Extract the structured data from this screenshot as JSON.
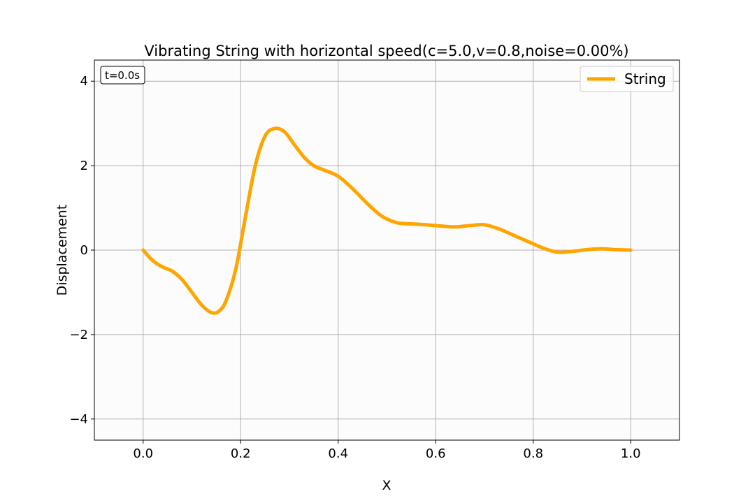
{
  "chart_data": {
    "type": "line",
    "title": "Vibrating String with horizontal speed(c=5.0,v=0.8,noise=0.00%)",
    "xlabel": "X",
    "ylabel": "Displacement",
    "xlim": [
      -0.1,
      1.1
    ],
    "ylim": [
      -4.5,
      4.5
    ],
    "xticks": [
      0.0,
      0.2,
      0.4,
      0.6,
      0.8,
      1.0
    ],
    "yticks": [
      -4,
      -2,
      0,
      2,
      4
    ],
    "xtick_labels": [
      "0.0",
      "0.2",
      "0.4",
      "0.6",
      "0.8",
      "1.0"
    ],
    "ytick_labels": [
      "−4",
      "−2",
      "0",
      "2",
      "4"
    ],
    "grid": true,
    "legend_position": "top-right",
    "annotation": "t=0.0s",
    "series": [
      {
        "name": "String",
        "color": "#FFA500",
        "x": [
          0.0,
          0.02,
          0.04,
          0.06,
          0.08,
          0.1,
          0.12,
          0.14,
          0.155,
          0.17,
          0.19,
          0.21,
          0.23,
          0.25,
          0.27,
          0.29,
          0.31,
          0.33,
          0.35,
          0.37,
          0.4,
          0.43,
          0.46,
          0.49,
          0.52,
          0.55,
          0.58,
          0.61,
          0.64,
          0.67,
          0.7,
          0.73,
          0.76,
          0.79,
          0.82,
          0.85,
          0.88,
          0.91,
          0.94,
          0.97,
          1.0
        ],
        "y": [
          0.0,
          -0.25,
          -0.4,
          -0.5,
          -0.7,
          -1.0,
          -1.3,
          -1.48,
          -1.45,
          -1.2,
          -0.45,
          0.8,
          2.0,
          2.7,
          2.88,
          2.8,
          2.5,
          2.2,
          2.0,
          1.9,
          1.75,
          1.45,
          1.1,
          0.8,
          0.65,
          0.62,
          0.6,
          0.57,
          0.55,
          0.58,
          0.6,
          0.5,
          0.35,
          0.2,
          0.05,
          -0.05,
          -0.03,
          0.01,
          0.03,
          0.01,
          0.0
        ]
      }
    ]
  }
}
